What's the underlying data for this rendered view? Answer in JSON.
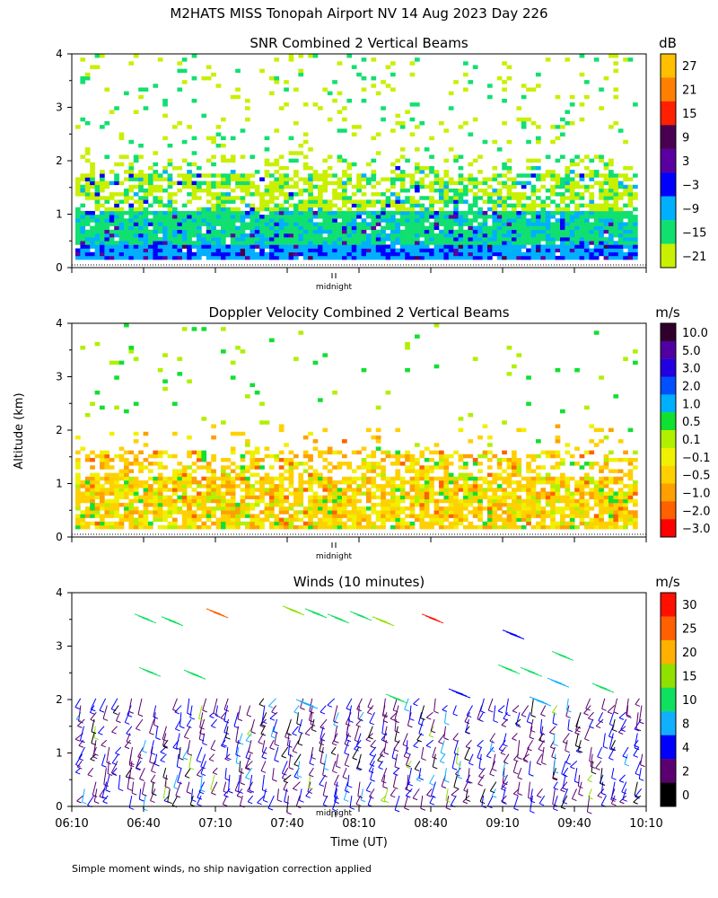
{
  "page": {
    "title": "M2HATS MISS Tonopah Airport NV  14 Aug 2023 Day 226",
    "footnote": "Simple moment winds, no ship navigation correction applied",
    "y_axis_label": "Altitude (km)",
    "x_axis_label": "Time (UT)",
    "midnight_label": "midnight"
  },
  "chart_data": [
    {
      "type": "heatmap",
      "title": "SNR Combined 2 Vertical Beams",
      "ylabel": "Altitude (km)",
      "ylim": [
        0,
        4
      ],
      "yticks": [
        "0",
        "1",
        "2",
        "3",
        "4"
      ],
      "colorbar": {
        "unit": "dB",
        "labels": [
          "27",
          "21",
          "15",
          "9",
          "3",
          "−3",
          "−9",
          "−15",
          "−21"
        ],
        "colors": [
          "#ffc000",
          "#ff8000",
          "#ff2000",
          "#4a0050",
          "#5a00a0",
          "#0000ff",
          "#00b0ff",
          "#10e070",
          "#c8f000"
        ]
      }
    },
    {
      "type": "heatmap",
      "title": "Doppler Velocity Combined 2 Vertical Beams",
      "ylabel": "Altitude (km)",
      "ylim": [
        0,
        4
      ],
      "yticks": [
        "0",
        "1",
        "2",
        "3",
        "4"
      ],
      "colorbar": {
        "unit": "m/s",
        "labels": [
          "10.0",
          "5.0",
          "3.0",
          "2.0",
          "1.0",
          "0.5",
          "0.1",
          "−0.1",
          "−0.5",
          "−1.0",
          "−2.0",
          "−3.0"
        ],
        "colors": [
          "#30002a",
          "#5000a0",
          "#2000e0",
          "#0050ff",
          "#00b0ff",
          "#10e030",
          "#b0f000",
          "#f0f000",
          "#ffd000",
          "#ffa000",
          "#ff6000",
          "#ff0000"
        ]
      }
    },
    {
      "type": "scatter",
      "title": "Winds (10 minutes)",
      "xlabel": "Time (UT)",
      "ylabel": "Altitude (km)",
      "ylim": [
        0,
        4
      ],
      "yticks": [
        "0",
        "1",
        "2",
        "3",
        "4"
      ],
      "x_tick_labels": [
        "06:10",
        "06:40",
        "07:10",
        "07:40",
        "08:10",
        "08:40",
        "09:10",
        "09:40",
        "10:10"
      ],
      "colorbar": {
        "unit": "m/s",
        "labels": [
          "30",
          "25",
          "20",
          "15",
          "10",
          "8",
          "4",
          "2",
          "0"
        ],
        "colors": [
          "#ff1000",
          "#ff6000",
          "#ffb000",
          "#90e000",
          "#10e060",
          "#10b0ff",
          "#0000ff",
          "#5a0070",
          "#000000"
        ]
      }
    }
  ]
}
